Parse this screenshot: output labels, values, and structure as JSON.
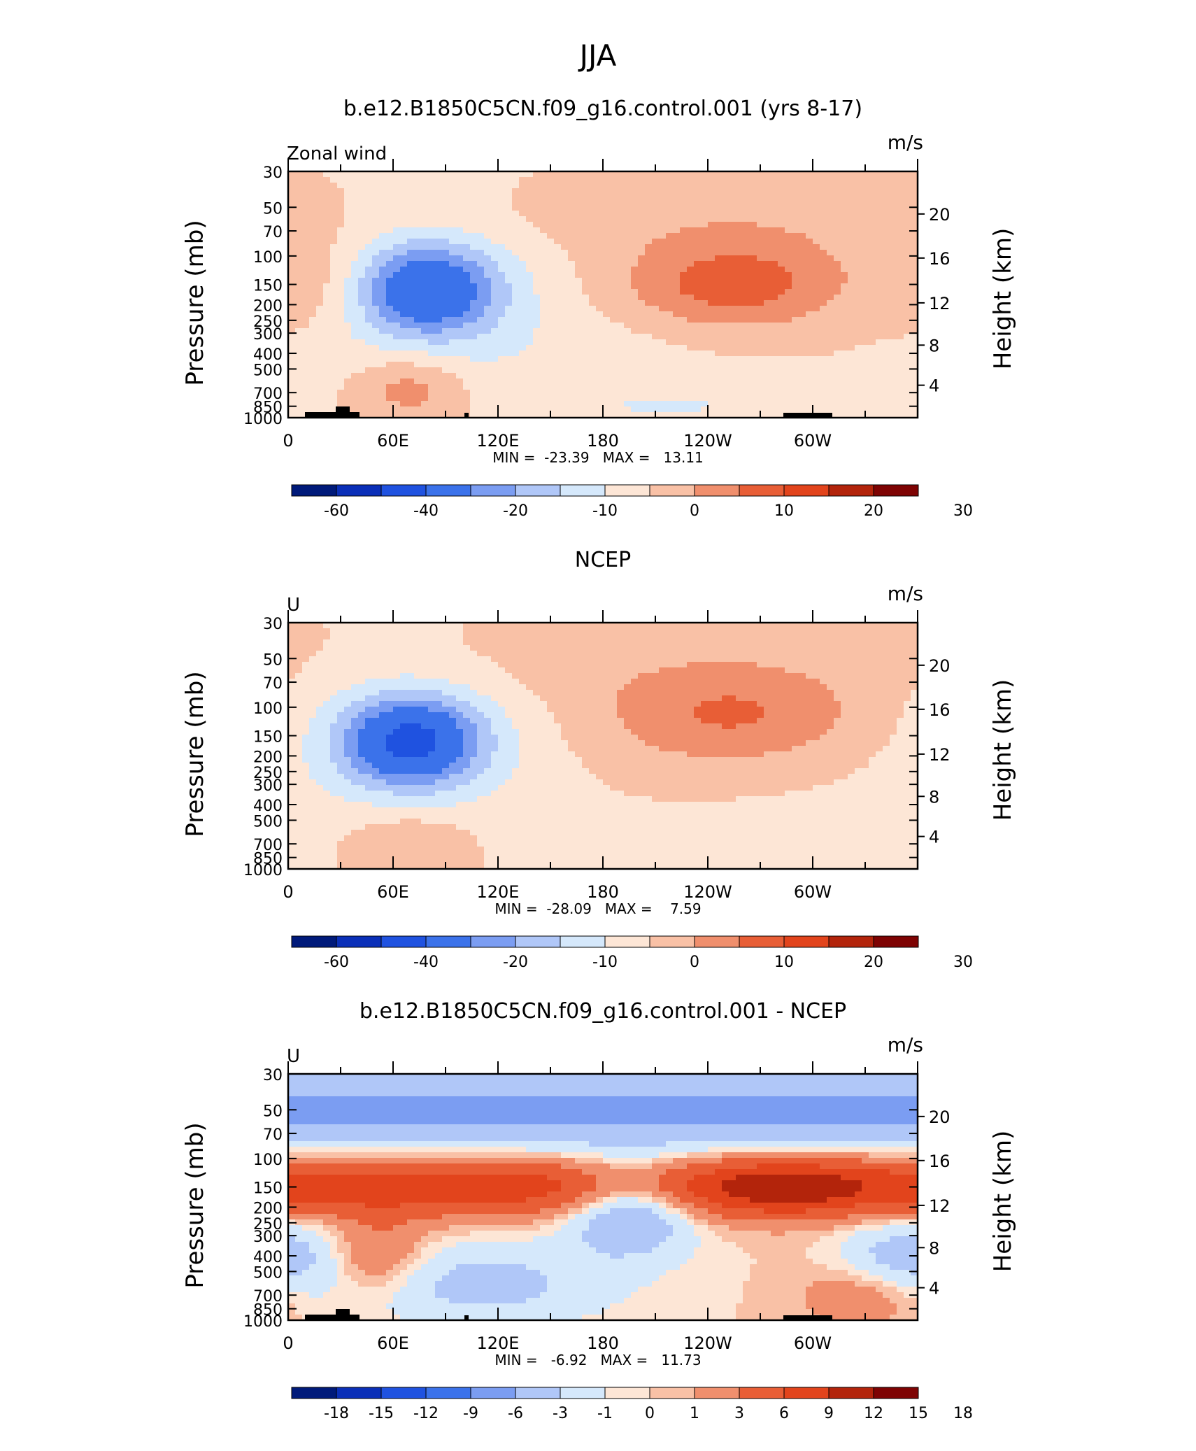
{
  "figure": {
    "title": "JJA",
    "y_left_ticks": [
      "30",
      "50",
      "70",
      "100",
      "150",
      "200",
      "250",
      "300",
      "400",
      "500",
      "700",
      "850",
      "1000"
    ],
    "y_right_ticks": [
      "20",
      "16",
      "12",
      "8",
      "4"
    ],
    "x_ticks": [
      "0",
      "60E",
      "120E",
      "180",
      "120W",
      "60W"
    ]
  },
  "chart_data": [
    {
      "type": "heatmap",
      "panel_title": "b.e12.B1850C5CN.f09_g16.control.001 (yrs 8-17)",
      "left_label": "Zonal wind",
      "units": "m/s",
      "ylabel": "Pressure (mb)",
      "ylabel_right": "Height (km)",
      "stats": "MIN =  -23.39   MAX =   13.11",
      "xlim": [
        0,
        360
      ],
      "ylim_pressure": [
        1000,
        30
      ],
      "colorbar": {
        "labels": [
          "-60",
          "-40",
          "-20",
          "-10",
          "0",
          "10",
          "20",
          "30"
        ],
        "colors": [
          "#001a7a",
          "#0a2fb8",
          "#1f52e0",
          "#3b72ea",
          "#7b9df2",
          "#b0c7f8",
          "#d5e8fb",
          "#fde6d6",
          "#f9c1a6",
          "#f08f6d",
          "#e85e36",
          "#e2441c",
          "#b3240b",
          "#7e0303"
        ]
      },
      "features": [
        {
          "kind": "westerly_jet",
          "lon": [
            200,
            300
          ],
          "p": [
            100,
            200
          ],
          "peak": 13.11
        },
        {
          "kind": "easterly_jet",
          "lon": [
            45,
            125
          ],
          "p": [
            100,
            300
          ],
          "peak": -23.39
        },
        {
          "kind": "low_level_westerly",
          "lon": [
            40,
            110
          ],
          "p": [
            400,
            850
          ],
          "peak": 9
        }
      ]
    },
    {
      "type": "heatmap",
      "panel_title": "NCEP",
      "left_label": "U",
      "units": "m/s",
      "ylabel": "Pressure (mb)",
      "ylabel_right": "Height (km)",
      "stats": "MIN =  -28.09   MAX =    7.59",
      "xlim": [
        0,
        360
      ],
      "ylim_pressure": [
        1000,
        30
      ],
      "colorbar": {
        "labels": [
          "-60",
          "-40",
          "-20",
          "-10",
          "0",
          "10",
          "20",
          "30"
        ],
        "colors": [
          "#001a7a",
          "#0a2fb8",
          "#1f52e0",
          "#3b72ea",
          "#7b9df2",
          "#b0c7f8",
          "#d5e8fb",
          "#fde6d6",
          "#f9c1a6",
          "#f08f6d",
          "#e85e36",
          "#e2441c",
          "#b3240b",
          "#7e0303"
        ]
      },
      "features": [
        {
          "kind": "westerly_jet",
          "lon": [
            200,
            320
          ],
          "p": [
            70,
            200
          ],
          "peak": 7.59
        },
        {
          "kind": "easterly_jet",
          "lon": [
            40,
            150
          ],
          "p": [
            100,
            300
          ],
          "peak": -28.09
        },
        {
          "kind": "low_level_westerly",
          "lon": [
            40,
            120
          ],
          "p": [
            500,
            850
          ],
          "peak": 6
        }
      ]
    },
    {
      "type": "heatmap",
      "panel_title": "b.e12.B1850C5CN.f09_g16.control.001 - NCEP",
      "left_label": "U",
      "units": "m/s",
      "ylabel": "Pressure (mb)",
      "ylabel_right": "Height (km)",
      "stats": "MIN =   -6.92   MAX =   11.73",
      "xlim": [
        0,
        360
      ],
      "ylim_pressure": [
        1000,
        30
      ],
      "colorbar": {
        "labels": [
          "-18",
          "-15",
          "-12",
          "-9",
          "-6",
          "-3",
          "-1",
          "0",
          "1",
          "3",
          "6",
          "9",
          "12",
          "15",
          "18"
        ],
        "colors": [
          "#001a7a",
          "#0a2fb8",
          "#1f52e0",
          "#3b72ea",
          "#7b9df2",
          "#b0c7f8",
          "#d5e8fb",
          "#fde6d6",
          "#f9c1a6",
          "#f08f6d",
          "#e85e36",
          "#e2441c",
          "#b3240b",
          "#7e0303"
        ]
      },
      "features": [
        {
          "kind": "positive_band",
          "lon": [
            0,
            360
          ],
          "p": [
            100,
            200
          ],
          "peak": 11.73
        },
        {
          "kind": "negative_band",
          "lon": [
            0,
            360
          ],
          "p": [
            30,
            90
          ],
          "peak": -6.92
        },
        {
          "kind": "negative_cell",
          "lon": [
            170,
            240
          ],
          "p": [
            120,
            350
          ],
          "peak": -4
        }
      ]
    }
  ]
}
